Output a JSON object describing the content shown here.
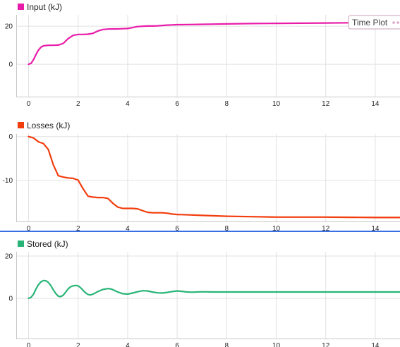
{
  "tooltip": {
    "label": "Time Plot"
  },
  "colors": {
    "input": "#e81ca9",
    "losses": "#f23d0d",
    "stored": "#28b477",
    "divider": "#3a6ee8",
    "grid": "#e2e2e2",
    "axis": "#c8c8c8"
  },
  "chart_data": [
    {
      "type": "line",
      "legend": "Input (kJ)",
      "legend_position": "top-left",
      "grid": true,
      "xlim": [
        -0.5,
        15
      ],
      "ylim": [
        -17,
        26
      ],
      "xticks": [
        0,
        2,
        4,
        6,
        8,
        10,
        12,
        14
      ],
      "yticks": [
        0,
        20
      ],
      "series": [
        {
          "name": "Input (kJ)",
          "x": [
            0,
            0.1,
            0.2,
            0.3,
            0.4,
            0.5,
            0.6,
            0.8,
            1.0,
            1.2,
            1.4,
            1.6,
            1.8,
            2.0,
            2.2,
            2.4,
            2.6,
            2.8,
            3.0,
            3.2,
            3.4,
            3.6,
            3.8,
            4.0,
            4.2,
            4.4,
            4.6,
            4.8,
            5.0,
            5.2,
            5.4,
            5.6,
            5.8,
            6.0,
            6.5,
            7.0,
            7.5,
            8.0,
            9.0,
            10.0,
            11.0,
            12.0,
            13.0,
            14.0,
            15.0
          ],
          "y": [
            0,
            0.5,
            2.5,
            5.2,
            7.5,
            9.0,
            9.7,
            10.0,
            10.0,
            10.1,
            11.0,
            13.5,
            15.2,
            15.7,
            15.7,
            15.8,
            16.3,
            17.5,
            18.3,
            18.5,
            18.6,
            18.6,
            18.7,
            18.8,
            19.3,
            19.8,
            20.0,
            20.1,
            20.1,
            20.2,
            20.4,
            20.6,
            20.7,
            20.8,
            20.9,
            21.0,
            21.1,
            21.2,
            21.4,
            21.5,
            21.6,
            21.7,
            21.8,
            21.9,
            22.0
          ]
        }
      ]
    },
    {
      "type": "line",
      "legend": "Losses (kJ)",
      "legend_position": "top-left",
      "grid": true,
      "xlim": [
        -0.5,
        15
      ],
      "ylim": [
        -19.5,
        0.6
      ],
      "xticks": [
        0,
        2,
        4,
        6,
        8,
        10,
        12,
        14
      ],
      "yticks": [
        0,
        -10
      ],
      "series": [
        {
          "name": "Losses (kJ)",
          "x": [
            0,
            0.2,
            0.4,
            0.6,
            0.8,
            1.0,
            1.2,
            1.4,
            1.6,
            1.8,
            2.0,
            2.2,
            2.4,
            2.6,
            2.8,
            3.0,
            3.2,
            3.4,
            3.6,
            3.8,
            4.0,
            4.2,
            4.4,
            4.6,
            4.8,
            5.0,
            5.2,
            5.4,
            5.6,
            5.8,
            6.0,
            6.5,
            7.0,
            7.5,
            8.0,
            9.0,
            10.0,
            11.0,
            12.0,
            13.0,
            14.0,
            15.0
          ],
          "y": [
            0,
            -0.3,
            -1.2,
            -1.6,
            -3.0,
            -6.5,
            -9.0,
            -9.3,
            -9.5,
            -9.6,
            -10.0,
            -12.0,
            -13.7,
            -13.9,
            -14.0,
            -14.0,
            -14.2,
            -15.3,
            -16.2,
            -16.5,
            -16.5,
            -16.5,
            -16.6,
            -17.0,
            -17.4,
            -17.5,
            -17.5,
            -17.5,
            -17.6,
            -17.8,
            -17.9,
            -18.0,
            -18.1,
            -18.2,
            -18.3,
            -18.4,
            -18.5,
            -18.5,
            -18.5,
            -18.55,
            -18.6,
            -18.6
          ]
        }
      ]
    },
    {
      "type": "line",
      "legend": "Stored (kJ)",
      "legend_position": "top-left",
      "grid": true,
      "xlim": [
        -0.5,
        15
      ],
      "ylim": [
        -19,
        22
      ],
      "xticks": [
        0,
        2,
        4,
        6,
        8,
        10,
        12,
        14
      ],
      "yticks": [
        0,
        20
      ],
      "series": [
        {
          "name": "Stored (kJ)",
          "x": [
            0,
            0.1,
            0.2,
            0.3,
            0.4,
            0.5,
            0.6,
            0.7,
            0.8,
            0.9,
            1.0,
            1.1,
            1.2,
            1.3,
            1.4,
            1.5,
            1.6,
            1.7,
            1.8,
            1.9,
            2.0,
            2.1,
            2.2,
            2.3,
            2.4,
            2.5,
            2.6,
            2.7,
            2.8,
            3.0,
            3.2,
            3.3,
            3.4,
            3.6,
            3.8,
            4.0,
            4.2,
            4.4,
            4.6,
            4.8,
            5.0,
            5.2,
            5.4,
            5.6,
            5.8,
            6.0,
            6.2,
            6.4,
            6.6,
            7.0,
            7.5,
            8.0,
            8.5,
            9.0,
            10.0,
            11.0,
            12.0,
            13.0,
            14.0,
            15.0
          ],
          "y": [
            0,
            0.5,
            2.0,
            4.5,
            6.5,
            7.8,
            8.4,
            8.3,
            7.5,
            6.0,
            4.0,
            2.2,
            1.0,
            0.8,
            1.5,
            3.0,
            4.5,
            5.5,
            5.9,
            6.1,
            5.9,
            5.0,
            3.8,
            2.6,
            1.8,
            1.6,
            2.0,
            2.6,
            3.2,
            4.2,
            4.6,
            4.5,
            4.1,
            3.0,
            2.2,
            2.0,
            2.5,
            3.1,
            3.6,
            3.5,
            3.0,
            2.6,
            2.5,
            2.8,
            3.2,
            3.5,
            3.3,
            3.0,
            2.9,
            3.1,
            3.0,
            3.0,
            3.0,
            3.0,
            3.0,
            3.0,
            3.0,
            3.0,
            3.0,
            3.0
          ]
        }
      ]
    }
  ]
}
